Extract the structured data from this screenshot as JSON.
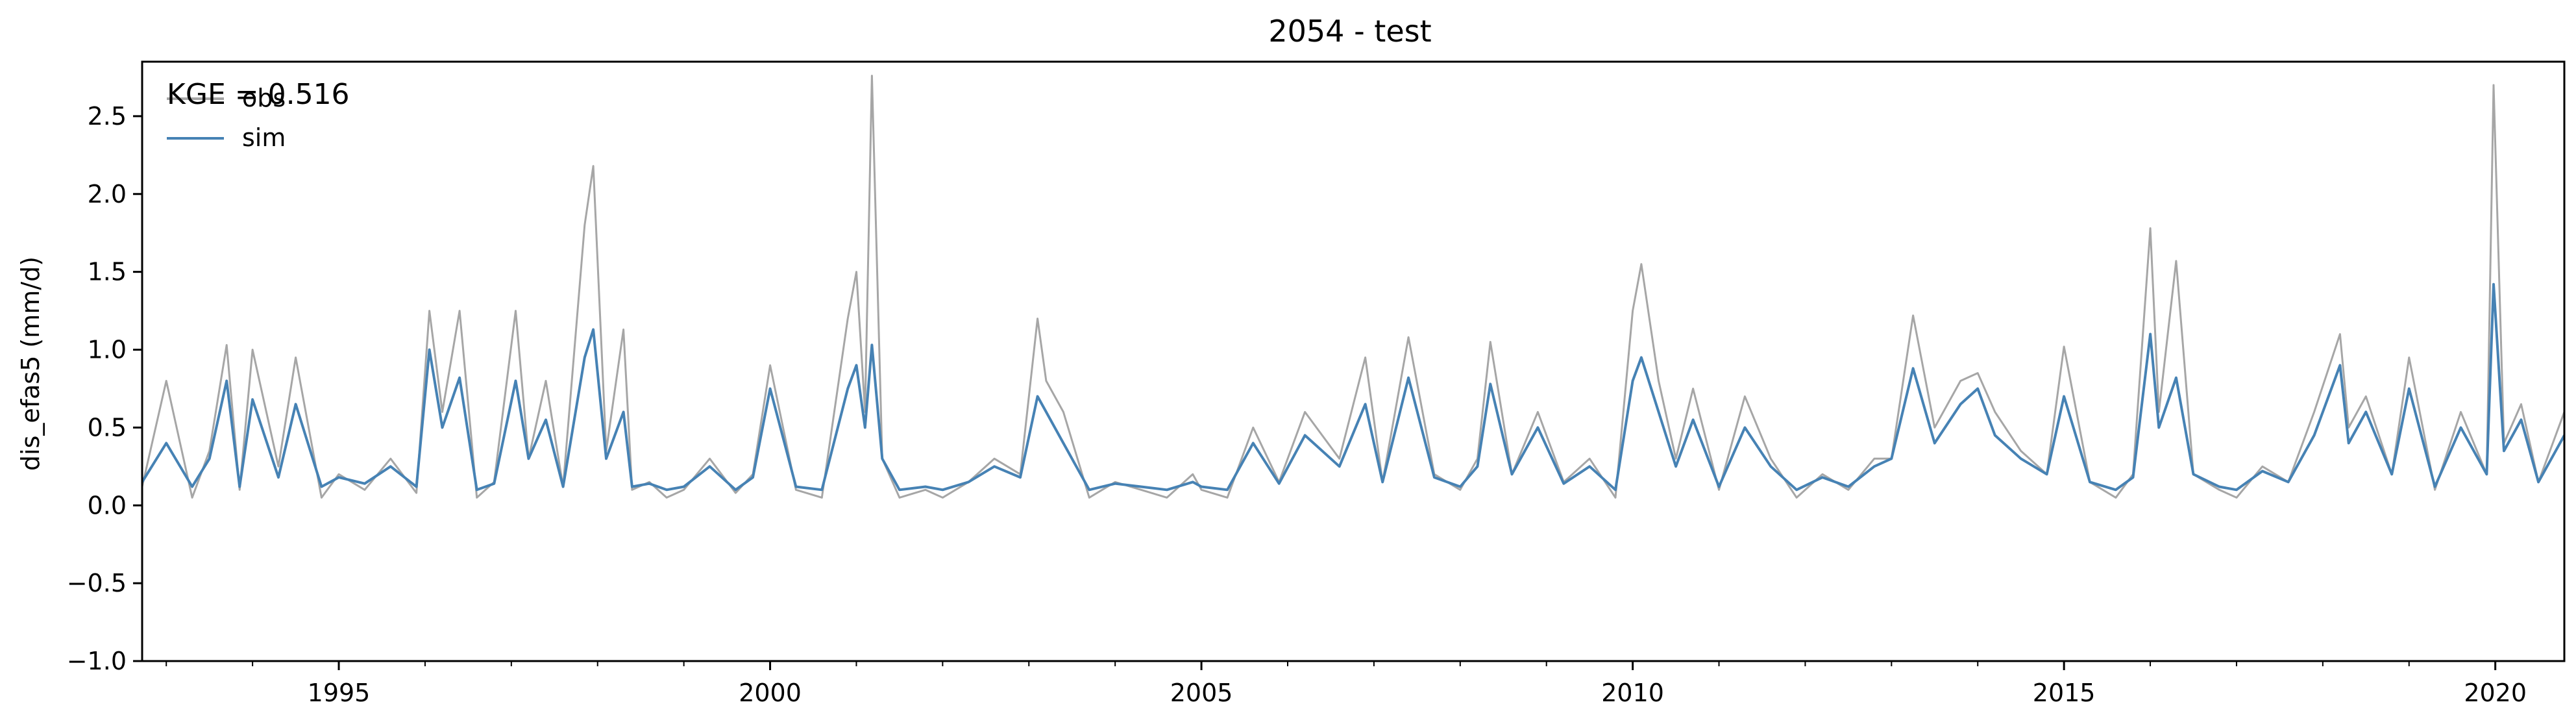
{
  "chart_data": {
    "type": "line",
    "title": "2054 - test",
    "xlabel": "",
    "ylabel": "dis_efas5 (mm/d)",
    "annotation": "KGE = 0.516",
    "xlim": [
      1992.72,
      2020.8
    ],
    "ylim": [
      -1.0,
      2.85
    ],
    "x_ticks": [
      1995,
      2000,
      2005,
      2010,
      2015,
      2020
    ],
    "x_tick_labels": [
      "1995",
      "2000",
      "2005",
      "2010",
      "2015",
      "2020"
    ],
    "y_ticks": [
      -1.0,
      -0.5,
      0.0,
      0.5,
      1.0,
      1.5,
      2.0,
      2.5
    ],
    "y_tick_labels": [
      "−1.0",
      "−0.5",
      "0.0",
      "0.5",
      "1.0",
      "1.5",
      "2.0",
      "2.5"
    ],
    "grid": false,
    "legend_position": "top-left",
    "series": [
      {
        "name": "obs",
        "color": "#a6a6a6",
        "x": [
          1992.72,
          1993.0,
          1993.3,
          1993.5,
          1993.7,
          1993.85,
          1994.0,
          1994.3,
          1994.5,
          1994.8,
          1995.0,
          1995.3,
          1995.6,
          1995.9,
          1996.05,
          1996.2,
          1996.4,
          1996.6,
          1996.8,
          1997.05,
          1997.2,
          1997.4,
          1997.6,
          1997.85,
          1997.95,
          1998.1,
          1998.3,
          1998.4,
          1998.6,
          1998.8,
          1999.0,
          1999.3,
          1999.6,
          1999.8,
          2000.0,
          2000.3,
          2000.6,
          2000.9,
          2001.0,
          2001.1,
          2001.18,
          2001.3,
          2001.5,
          2001.8,
          2002.0,
          2002.3,
          2002.6,
          2002.9,
          2003.1,
          2003.2,
          2003.4,
          2003.7,
          2004.0,
          2004.3,
          2004.6,
          2004.9,
          2005.0,
          2005.3,
          2005.6,
          2005.9,
          2006.2,
          2006.6,
          2006.9,
          2007.1,
          2007.4,
          2007.7,
          2008.0,
          2008.2,
          2008.35,
          2008.6,
          2008.9,
          2009.2,
          2009.5,
          2009.8,
          2010.0,
          2010.1,
          2010.3,
          2010.5,
          2010.7,
          2011.0,
          2011.3,
          2011.6,
          2011.9,
          2012.2,
          2012.5,
          2012.8,
          2013.0,
          2013.25,
          2013.5,
          2013.8,
          2014.0,
          2014.2,
          2014.5,
          2014.8,
          2015.0,
          2015.3,
          2015.6,
          2015.8,
          2016.0,
          2016.1,
          2016.3,
          2016.5,
          2016.8,
          2017.0,
          2017.3,
          2017.6,
          2017.9,
          2018.2,
          2018.3,
          2018.5,
          2018.8,
          2019.0,
          2019.3,
          2019.6,
          2019.9,
          2019.98,
          2020.1,
          2020.3,
          2020.5,
          2020.8
        ],
        "values": [
          0.12,
          0.8,
          0.05,
          0.35,
          1.03,
          0.1,
          1.0,
          0.25,
          0.95,
          0.05,
          0.2,
          0.1,
          0.3,
          0.08,
          1.25,
          0.6,
          1.25,
          0.05,
          0.15,
          1.25,
          0.3,
          0.8,
          0.12,
          1.8,
          2.18,
          0.35,
          1.13,
          0.1,
          0.15,
          0.05,
          0.1,
          0.3,
          0.08,
          0.2,
          0.9,
          0.1,
          0.05,
          1.2,
          1.5,
          0.6,
          2.76,
          0.3,
          0.05,
          0.1,
          0.05,
          0.15,
          0.3,
          0.2,
          1.2,
          0.8,
          0.6,
          0.05,
          0.15,
          0.1,
          0.05,
          0.2,
          0.1,
          0.05,
          0.5,
          0.15,
          0.6,
          0.3,
          0.95,
          0.15,
          1.08,
          0.2,
          0.1,
          0.3,
          1.05,
          0.2,
          0.6,
          0.15,
          0.3,
          0.05,
          1.25,
          1.55,
          0.8,
          0.3,
          0.75,
          0.1,
          0.7,
          0.3,
          0.05,
          0.2,
          0.1,
          0.3,
          0.3,
          1.22,
          0.5,
          0.8,
          0.85,
          0.6,
          0.35,
          0.2,
          1.02,
          0.15,
          0.05,
          0.2,
          1.78,
          0.6,
          1.57,
          0.2,
          0.1,
          0.05,
          0.25,
          0.15,
          0.6,
          1.1,
          0.5,
          0.7,
          0.2,
          0.95,
          0.1,
          0.6,
          0.2,
          2.7,
          0.4,
          0.65,
          0.15,
          0.6
        ]
      },
      {
        "name": "sim",
        "color": "#4682b4",
        "x": [
          1992.72,
          1993.0,
          1993.3,
          1993.5,
          1993.7,
          1993.85,
          1994.0,
          1994.3,
          1994.5,
          1994.8,
          1995.0,
          1995.3,
          1995.6,
          1995.9,
          1996.05,
          1996.2,
          1996.4,
          1996.6,
          1996.8,
          1997.05,
          1997.2,
          1997.4,
          1997.6,
          1997.85,
          1997.95,
          1998.1,
          1998.3,
          1998.4,
          1998.6,
          1998.8,
          1999.0,
          1999.3,
          1999.6,
          1999.8,
          2000.0,
          2000.3,
          2000.6,
          2000.9,
          2001.0,
          2001.1,
          2001.18,
          2001.3,
          2001.5,
          2001.8,
          2002.0,
          2002.3,
          2002.6,
          2002.9,
          2003.1,
          2003.2,
          2003.4,
          2003.7,
          2004.0,
          2004.3,
          2004.6,
          2004.9,
          2005.0,
          2005.3,
          2005.6,
          2005.9,
          2006.2,
          2006.6,
          2006.9,
          2007.1,
          2007.4,
          2007.7,
          2008.0,
          2008.2,
          2008.35,
          2008.6,
          2008.9,
          2009.2,
          2009.5,
          2009.8,
          2010.0,
          2010.1,
          2010.3,
          2010.5,
          2010.7,
          2011.0,
          2011.3,
          2011.6,
          2011.9,
          2012.2,
          2012.5,
          2012.8,
          2013.0,
          2013.25,
          2013.5,
          2013.8,
          2014.0,
          2014.2,
          2014.5,
          2014.8,
          2015.0,
          2015.3,
          2015.6,
          2015.8,
          2016.0,
          2016.1,
          2016.3,
          2016.5,
          2016.8,
          2017.0,
          2017.3,
          2017.6,
          2017.9,
          2018.2,
          2018.3,
          2018.5,
          2018.8,
          2019.0,
          2019.3,
          2019.6,
          2019.9,
          2019.98,
          2020.1,
          2020.3,
          2020.5,
          2020.8
        ],
        "values": [
          0.15,
          0.4,
          0.12,
          0.3,
          0.8,
          0.12,
          0.68,
          0.18,
          0.65,
          0.12,
          0.18,
          0.14,
          0.25,
          0.12,
          1.0,
          0.5,
          0.82,
          0.1,
          0.14,
          0.8,
          0.3,
          0.55,
          0.12,
          0.95,
          1.13,
          0.3,
          0.6,
          0.12,
          0.14,
          0.1,
          0.12,
          0.25,
          0.1,
          0.18,
          0.75,
          0.12,
          0.1,
          0.75,
          0.9,
          0.5,
          1.03,
          0.3,
          0.1,
          0.12,
          0.1,
          0.15,
          0.25,
          0.18,
          0.7,
          0.6,
          0.4,
          0.1,
          0.14,
          0.12,
          0.1,
          0.15,
          0.12,
          0.1,
          0.4,
          0.14,
          0.45,
          0.25,
          0.65,
          0.15,
          0.82,
          0.18,
          0.12,
          0.25,
          0.78,
          0.2,
          0.5,
          0.14,
          0.25,
          0.1,
          0.8,
          0.95,
          0.6,
          0.25,
          0.55,
          0.12,
          0.5,
          0.25,
          0.1,
          0.18,
          0.12,
          0.25,
          0.3,
          0.88,
          0.4,
          0.65,
          0.75,
          0.45,
          0.3,
          0.2,
          0.7,
          0.15,
          0.1,
          0.18,
          1.1,
          0.5,
          0.82,
          0.2,
          0.12,
          0.1,
          0.22,
          0.15,
          0.45,
          0.9,
          0.4,
          0.6,
          0.2,
          0.75,
          0.12,
          0.5,
          0.2,
          1.42,
          0.35,
          0.55,
          0.15,
          0.45
        ]
      }
    ]
  }
}
